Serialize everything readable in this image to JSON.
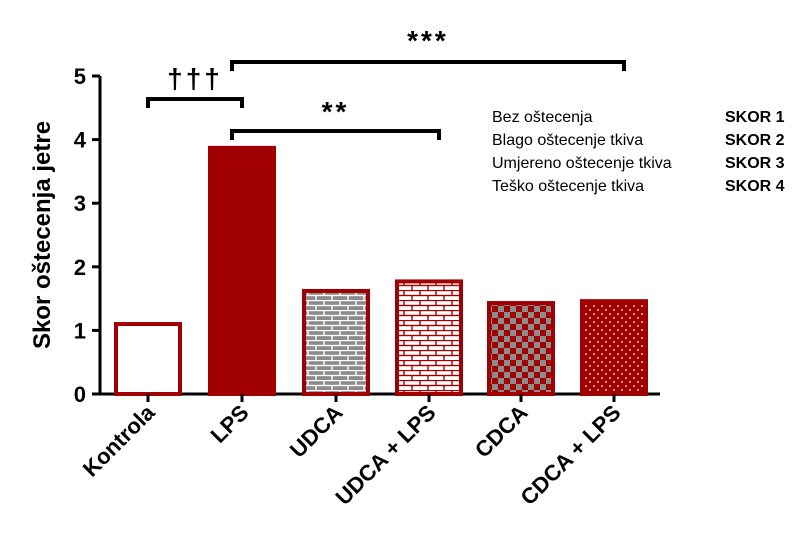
{
  "chart_data": {
    "type": "bar",
    "ylabel": "Skor oštecenja jetre",
    "ylim": [
      0,
      5
    ],
    "yticks": [
      0,
      1,
      2,
      3,
      4,
      5
    ],
    "categories": [
      "Kontrola",
      "LPS",
      "UDCA",
      "UDCA + LPS",
      "CDCA",
      "CDCA + LPS"
    ],
    "values": [
      1.1,
      3.87,
      1.62,
      1.77,
      1.43,
      1.46
    ],
    "fills": [
      "hollow",
      "solid",
      "brick",
      "brick",
      "checker",
      "dots"
    ],
    "colors": {
      "bar": "#a00000",
      "pattern_dark": "#8c8c8c",
      "pattern_light": "#ffffff"
    },
    "significance": [
      {
        "from": 0,
        "to": 1,
        "label": "†††"
      },
      {
        "from": 1,
        "to": 3,
        "label": "**"
      },
      {
        "from": 1,
        "to": 5,
        "label": "***"
      }
    ],
    "legend": [
      {
        "desc": "Bez oštecenja",
        "score": "SKOR 1"
      },
      {
        "desc": "Blago oštecenje tkiva",
        "score": "SKOR 2"
      },
      {
        "desc": "Umjereno oštecenje tkiva",
        "score": "SKOR 3"
      },
      {
        "desc": "Teško oštecenje tkiva",
        "score": "SKOR 4"
      }
    ]
  }
}
